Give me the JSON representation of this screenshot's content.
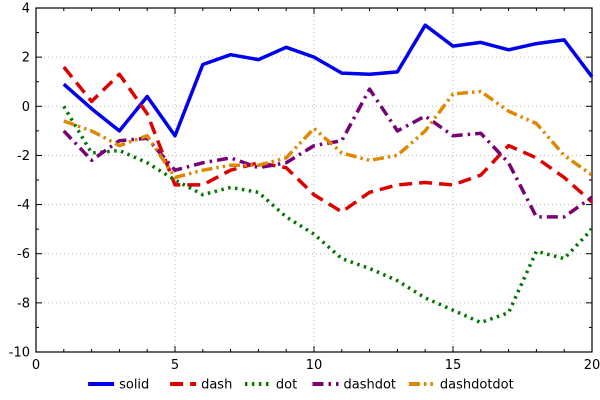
{
  "chart_data": {
    "type": "line",
    "x": [
      1,
      2,
      3,
      4,
      5,
      6,
      7,
      8,
      9,
      10,
      11,
      12,
      13,
      14,
      15,
      16,
      17,
      18,
      19,
      20
    ],
    "series": [
      {
        "name": "solid",
        "style": "solid",
        "color": "#0000ee",
        "values": [
          0.9,
          -0.1,
          -1.0,
          0.4,
          -1.2,
          1.7,
          2.1,
          1.9,
          2.4,
          2.0,
          1.35,
          1.3,
          1.4,
          3.3,
          2.45,
          2.6,
          2.3,
          2.55,
          2.7,
          1.2
        ]
      },
      {
        "name": "dash",
        "style": "dash",
        "color": "#dd0000",
        "values": [
          1.6,
          0.2,
          1.3,
          -0.3,
          -3.2,
          -3.2,
          -2.6,
          -2.3,
          -2.5,
          -3.6,
          -4.3,
          -3.5,
          -3.2,
          -3.1,
          -3.2,
          -2.8,
          -1.6,
          -2.1,
          -2.9,
          -3.9
        ]
      },
      {
        "name": "dot",
        "style": "dot",
        "color": "#007700",
        "values": [
          0.0,
          -1.9,
          -1.8,
          -2.3,
          -3.0,
          -3.6,
          -3.3,
          -3.5,
          -4.5,
          -5.2,
          -6.2,
          -6.6,
          -7.1,
          -7.8,
          -8.3,
          -8.8,
          -8.4,
          -5.9,
          -6.2,
          -5.0
        ]
      },
      {
        "name": "dashdot",
        "style": "dashdot",
        "color": "#770077",
        "values": [
          -1.0,
          -2.2,
          -1.4,
          -1.3,
          -2.6,
          -2.3,
          -2.1,
          -2.5,
          -2.3,
          -1.6,
          -1.4,
          0.7,
          -1.0,
          -0.4,
          -1.2,
          -1.1,
          -2.3,
          -4.5,
          -4.5,
          -3.7
        ]
      },
      {
        "name": "dashdotdot",
        "style": "dashdotdot",
        "color": "#dd8800",
        "values": [
          -0.6,
          -1.0,
          -1.6,
          -1.2,
          -2.9,
          -2.6,
          -2.4,
          -2.4,
          -2.1,
          -0.9,
          -1.9,
          -2.2,
          -2.0,
          -1.0,
          0.5,
          0.6,
          -0.2,
          -0.7,
          -2.0,
          -2.8
        ]
      }
    ],
    "title": "",
    "xlabel": "",
    "ylabel": "",
    "xlim": [
      0,
      20
    ],
    "ylim": [
      -10,
      4
    ],
    "xticks": [
      0,
      5,
      10,
      15,
      20
    ],
    "yticks": [
      4,
      2,
      0,
      -2,
      -4,
      -6,
      -8,
      -10
    ],
    "x_minor_step": 1,
    "y_minor_step": 1,
    "grid": true,
    "grid_color": "#b8b8b8",
    "frame_color": "#000000",
    "legend_position": "bottom",
    "legend_labels": [
      "solid",
      "dash",
      "dot",
      "dashdot",
      "dashdotdot"
    ]
  }
}
